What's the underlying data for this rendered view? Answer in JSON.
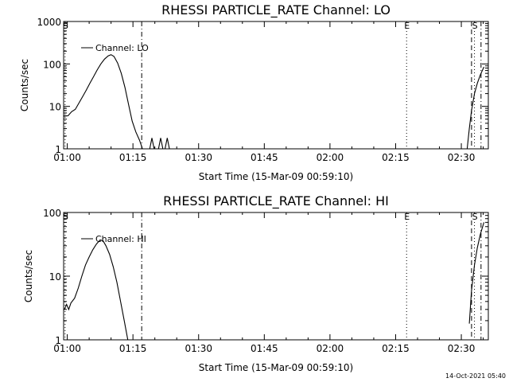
{
  "footer": "14-Oct-2021 05:40",
  "chart_data": [
    {
      "type": "line",
      "title": "RHESSI PARTICLE_RATE Channel: LO",
      "xlabel": "Start Time (15-Mar-09 00:59:10)",
      "ylabel": "Counts/sec",
      "yscale": "log",
      "xlim": [
        "00:59:10",
        "02:36:10"
      ],
      "ylim": [
        1,
        1000
      ],
      "x_ticks": [
        "01:00",
        "01:15",
        "01:30",
        "01:45",
        "02:00",
        "02:15",
        "02:30"
      ],
      "y_ticks": [
        "1",
        "10",
        "100",
        "1000"
      ],
      "legend": "Channel: LO",
      "legend_position": "top-left",
      "markers": [
        {
          "label": "S",
          "time": "00:59:30",
          "style": "dotted"
        },
        {
          "label": "",
          "time": "01:17:00",
          "style": "dash-dot"
        },
        {
          "label": "E",
          "time": "02:17:30",
          "style": "dotted"
        },
        {
          "label": "",
          "time": "02:32:20",
          "style": "dashed"
        },
        {
          "label": "S",
          "time": "02:33:00",
          "style": "dotted"
        },
        {
          "label": "",
          "time": "02:34:30",
          "style": "dash-dot"
        }
      ],
      "series": [
        {
          "segments": [
            [
              [
                "00:59:10",
                5.9
              ],
              [
                "01:00:10",
                6
              ],
              [
                "01:01:00",
                7.5
              ],
              [
                "01:01:50",
                8.5
              ],
              [
                "01:02:40",
                12
              ],
              [
                "01:03:30",
                17
              ],
              [
                "01:04:20",
                24
              ],
              [
                "01:05:10",
                35
              ],
              [
                "01:06:00",
                50
              ],
              [
                "01:06:50",
                72
              ],
              [
                "01:07:40",
                100
              ],
              [
                "01:08:30",
                130
              ],
              [
                "01:09:20",
                155
              ],
              [
                "01:10:00",
                165
              ],
              [
                "01:10:40",
                150
              ],
              [
                "01:11:30",
                105
              ],
              [
                "01:12:20",
                60
              ],
              [
                "01:13:10",
                28
              ],
              [
                "01:14:00",
                11
              ],
              [
                "01:14:50",
                4.5
              ],
              [
                "01:15:40",
                2.5
              ],
              [
                "01:16:30",
                1.6
              ],
              [
                "01:17:10",
                1
              ]
            ],
            [
              [
                "01:18:50",
                1
              ],
              [
                "01:19:20",
                1.8
              ],
              [
                "01:19:50",
                1
              ]
            ],
            [
              [
                "01:20:50",
                1
              ],
              [
                "01:21:20",
                1.8
              ],
              [
                "01:21:50",
                1
              ]
            ],
            [
              [
                "01:22:20",
                1
              ],
              [
                "01:22:50",
                1.8
              ],
              [
                "01:23:20",
                1
              ]
            ],
            [
              [
                "02:31:20",
                1
              ],
              [
                "02:31:50",
                3
              ],
              [
                "02:32:20",
                8
              ],
              [
                "02:33:00",
                20
              ],
              [
                "02:33:40",
                35
              ],
              [
                "02:34:20",
                55
              ],
              [
                "02:35:10",
                85
              ]
            ]
          ]
        }
      ]
    },
    {
      "type": "line",
      "title": "RHESSI PARTICLE_RATE Channel: HI",
      "xlabel": "Start Time (15-Mar-09 00:59:10)",
      "ylabel": "Counts/sec",
      "yscale": "log",
      "xlim": [
        "00:59:10",
        "02:36:10"
      ],
      "ylim": [
        1,
        100
      ],
      "x_ticks": [
        "01:00",
        "01:15",
        "01:30",
        "01:45",
        "02:00",
        "02:15",
        "02:30"
      ],
      "y_ticks": [
        "1",
        "10",
        "100"
      ],
      "legend": "Channel: HI",
      "legend_position": "top-left",
      "markers": [
        {
          "label": "S",
          "time": "00:59:30",
          "style": "dotted"
        },
        {
          "label": "",
          "time": "01:17:00",
          "style": "dash-dot"
        },
        {
          "label": "E",
          "time": "02:17:30",
          "style": "dotted"
        },
        {
          "label": "",
          "time": "02:32:20",
          "style": "dashed"
        },
        {
          "label": "S",
          "time": "02:33:00",
          "style": "dotted"
        },
        {
          "label": "",
          "time": "02:34:30",
          "style": "dash-dot"
        }
      ],
      "series": [
        {
          "segments": [
            [
              [
                "00:59:20",
                3
              ],
              [
                "00:59:50",
                3.6
              ],
              [
                "01:00:20",
                3
              ],
              [
                "01:00:50",
                3.8
              ],
              [
                "01:01:40",
                4.5
              ],
              [
                "01:02:30",
                6.5
              ],
              [
                "01:03:20",
                10
              ],
              [
                "01:04:10",
                15
              ],
              [
                "01:05:00",
                20
              ],
              [
                "01:05:50",
                26
              ],
              [
                "01:06:40",
                32
              ],
              [
                "01:07:30",
                37
              ],
              [
                "01:08:10",
                36
              ],
              [
                "01:08:50",
                30
              ],
              [
                "01:09:40",
                22
              ],
              [
                "01:10:30",
                14
              ],
              [
                "01:11:20",
                8
              ],
              [
                "01:12:10",
                4
              ],
              [
                "01:13:00",
                2
              ],
              [
                "01:13:50",
                1
              ]
            ],
            [
              [
                "02:31:50",
                1.8
              ],
              [
                "02:32:20",
                6
              ],
              [
                "02:33:00",
                15
              ],
              [
                "02:33:40",
                28
              ],
              [
                "02:34:20",
                45
              ],
              [
                "02:35:10",
                70
              ]
            ]
          ]
        }
      ]
    }
  ]
}
